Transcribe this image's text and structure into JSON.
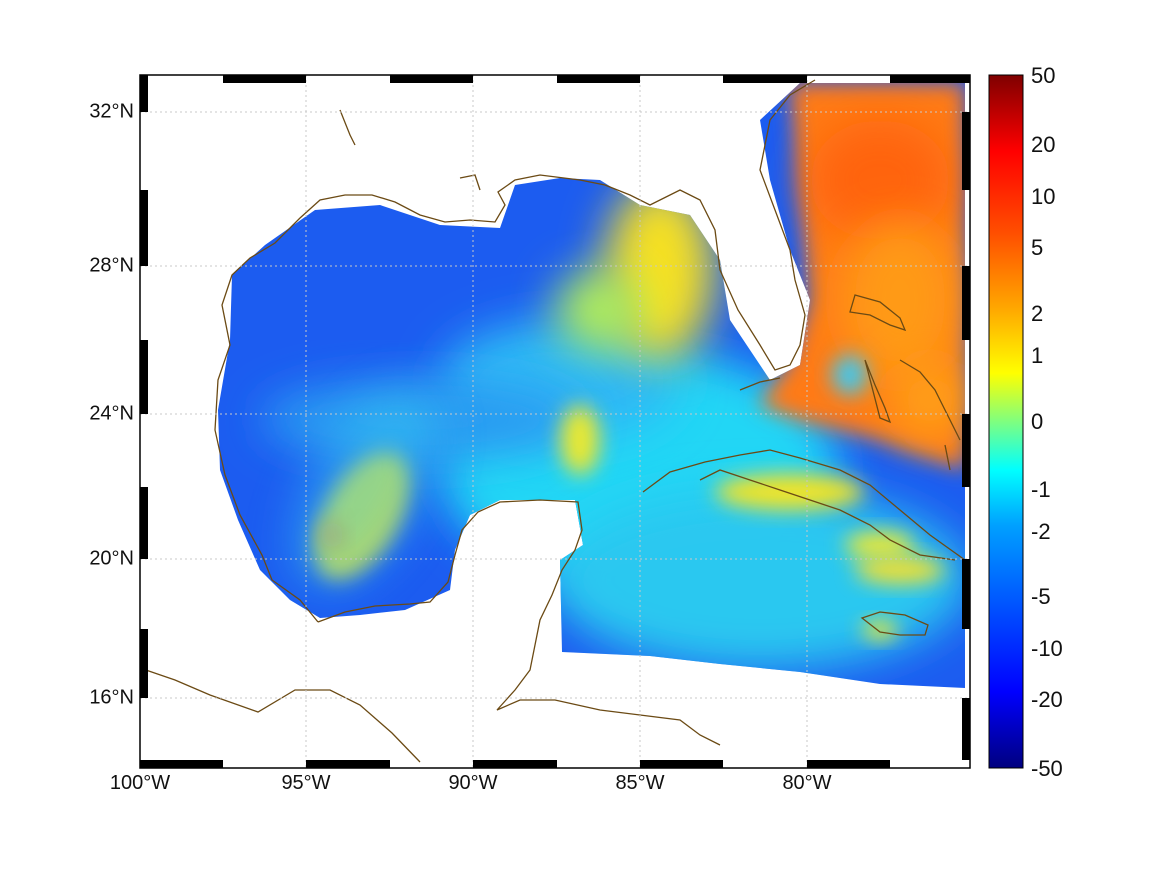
{
  "map": {
    "lon_labels": [
      "100°W",
      "95°W",
      "90°W",
      "85°W",
      "80°W"
    ],
    "lat_labels": [
      "32°N",
      "28°N",
      "24°N",
      "20°N",
      "16°N"
    ],
    "coastline_color": "#6b4a14",
    "grid_style": "dotted",
    "frame_style": "black-and-white checkered border"
  },
  "colorbar": {
    "tick_labels": [
      "50",
      "20",
      "10",
      "5",
      "2",
      "1",
      "0",
      "-1",
      "-2",
      "-5",
      "-10",
      "-20",
      "-50"
    ],
    "colormap": "jet",
    "colors": [
      "#00007f",
      "#0000ff",
      "#007fff",
      "#00ffff",
      "#7fff7f",
      "#ffff00",
      "#ff7f00",
      "#ff0000",
      "#7f0000"
    ]
  },
  "field_colors": {
    "gulf_blue": "#1c5cf0",
    "cyan_band": "#22d6f5",
    "warm_yellow": "#ffd21a",
    "atlantic_orange": "#ff7a14"
  }
}
